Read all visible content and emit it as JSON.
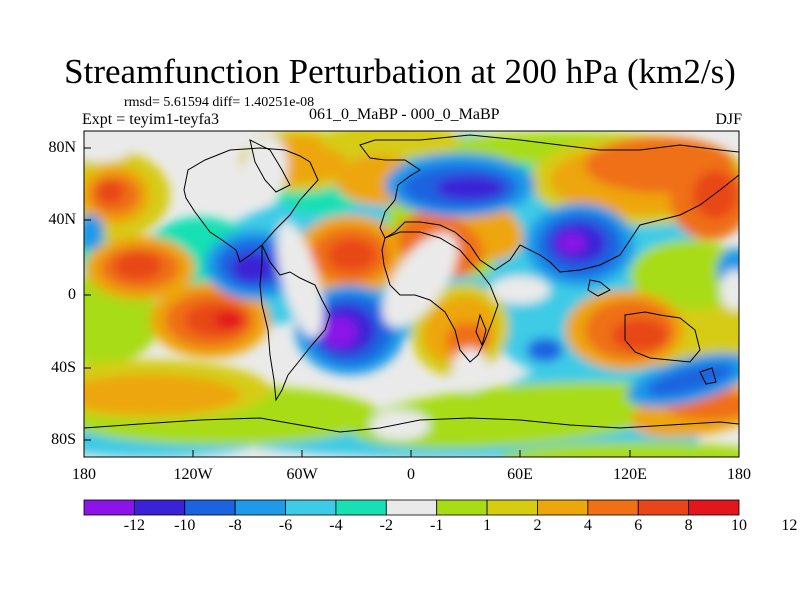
{
  "title": "Streamfunction Perturbation at 200 hPa (km2/s)",
  "stats_line": "rmsd= 5.61594 diff= 1.40251e-08",
  "left_label": "Expt = teyim1-teyfa3",
  "center_label": "061_0_MaBP - 000_0_MaBP",
  "right_label": "DJF",
  "y_ticks": [
    "80N",
    "40N",
    "0",
    "40S",
    "80S"
  ],
  "x_ticks": [
    "180",
    "120W",
    "60W",
    "0",
    "60E",
    "120E",
    "180"
  ],
  "colorbar": {
    "colors": [
      "#8b15e8",
      "#3b22d6",
      "#1b63e0",
      "#1f9ae8",
      "#3ecbe6",
      "#19e0b4",
      "#eaeaea",
      "#a8dc14",
      "#d6cc12",
      "#eda60c",
      "#ef7015",
      "#e84619",
      "#e3161b"
    ],
    "labels": [
      "-12",
      "-10",
      "-8",
      "-6",
      "-4",
      "-2",
      "-1",
      "1",
      "2",
      "4",
      "6",
      "8",
      "10",
      "12"
    ]
  },
  "map_colors": {
    "background": "#eaeaea",
    "cyan": "#3ecbe6",
    "teal": "#19e0b4",
    "lightblue": "#1f9ae8",
    "blue": "#1b63e0",
    "darkblue": "#3b22d6",
    "purple": "#8b15e8",
    "green": "#a8dc14",
    "yellow": "#d6cc12",
    "gold": "#eda60c",
    "orange": "#ef7015",
    "darkorange": "#e84619",
    "red": "#e3161b"
  }
}
